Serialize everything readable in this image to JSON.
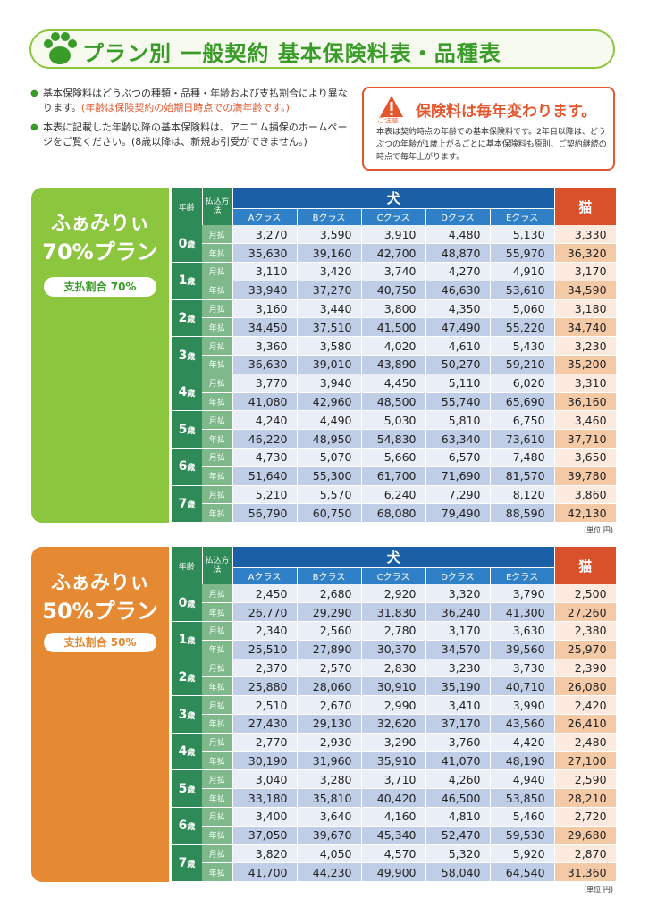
{
  "title": "プラン別 一般契約 基本保険料表・品種表",
  "notes": {
    "note1": "基本保険料はどうぶつの種類・品種・年齢および支払割合により異なります。",
    "note1_red": "(年齢は保険契約の始期日時点での満年齢です。)",
    "note2": "本表に記載した年齢以降の基本保険料は、アニコム損保のホームページをご覧ください。(8歳以降は、新規お引受ができません。)"
  },
  "caution": {
    "label": "ご注意",
    "heading": "保険料は毎年変わります。",
    "body": "本表は契約時点の年齢での基本保険料です。2年目以降は、どうぶつの年齢が1歳上がるごとに基本保険料も原則、ご契約継続の時点で毎年上がります。"
  },
  "table_headers": {
    "age": "年齢",
    "pay_method": "払込方法",
    "dog": "犬",
    "cat": "猫",
    "classes": [
      "Aクラス",
      "Bクラス",
      "Cクラス",
      "Dクラス",
      "Eクラス"
    ],
    "monthly": "月払",
    "annual": "年払",
    "age_suffix": "歳"
  },
  "colors": {
    "green": "#8cc63f",
    "orange": "#e58a33",
    "dog_header": "#1b5fa6",
    "cat_header": "#d8512b"
  },
  "plans": [
    {
      "name_line1": "ふぁみりぃ",
      "name_line2": "70%プラン",
      "badge": "支払割合 70%",
      "unit": "(単位:円)",
      "rows": [
        {
          "age": "0",
          "monthly": [
            "3,270",
            "3,590",
            "3,910",
            "4,480",
            "5,130",
            "3,330"
          ],
          "annual": [
            "35,630",
            "39,160",
            "42,700",
            "48,870",
            "55,970",
            "36,320"
          ]
        },
        {
          "age": "1",
          "monthly": [
            "3,110",
            "3,420",
            "3,740",
            "4,270",
            "4,910",
            "3,170"
          ],
          "annual": [
            "33,940",
            "37,270",
            "40,750",
            "46,630",
            "53,610",
            "34,590"
          ]
        },
        {
          "age": "2",
          "monthly": [
            "3,160",
            "3,440",
            "3,800",
            "4,350",
            "5,060",
            "3,180"
          ],
          "annual": [
            "34,450",
            "37,510",
            "41,500",
            "47,490",
            "55,220",
            "34,740"
          ]
        },
        {
          "age": "3",
          "monthly": [
            "3,360",
            "3,580",
            "4,020",
            "4,610",
            "5,430",
            "3,230"
          ],
          "annual": [
            "36,630",
            "39,010",
            "43,890",
            "50,270",
            "59,210",
            "35,200"
          ]
        },
        {
          "age": "4",
          "monthly": [
            "3,770",
            "3,940",
            "4,450",
            "5,110",
            "6,020",
            "3,310"
          ],
          "annual": [
            "41,080",
            "42,960",
            "48,500",
            "55,740",
            "65,690",
            "36,160"
          ]
        },
        {
          "age": "5",
          "monthly": [
            "4,240",
            "4,490",
            "5,030",
            "5,810",
            "6,750",
            "3,460"
          ],
          "annual": [
            "46,220",
            "48,950",
            "54,830",
            "63,340",
            "73,610",
            "37,710"
          ]
        },
        {
          "age": "6",
          "monthly": [
            "4,730",
            "5,070",
            "5,660",
            "6,570",
            "7,480",
            "3,650"
          ],
          "annual": [
            "51,640",
            "55,300",
            "61,700",
            "71,690",
            "81,570",
            "39,780"
          ]
        },
        {
          "age": "7",
          "monthly": [
            "5,210",
            "5,570",
            "6,240",
            "7,290",
            "8,120",
            "3,860"
          ],
          "annual": [
            "56,790",
            "60,750",
            "68,080",
            "79,490",
            "88,590",
            "42,130"
          ]
        }
      ]
    },
    {
      "name_line1": "ふぁみりぃ",
      "name_line2": "50%プラン",
      "badge": "支払割合 50%",
      "unit": "(単位:円)",
      "rows": [
        {
          "age": "0",
          "monthly": [
            "2,450",
            "2,680",
            "2,920",
            "3,320",
            "3,790",
            "2,500"
          ],
          "annual": [
            "26,770",
            "29,290",
            "31,830",
            "36,240",
            "41,300",
            "27,260"
          ]
        },
        {
          "age": "1",
          "monthly": [
            "2,340",
            "2,560",
            "2,780",
            "3,170",
            "3,630",
            "2,380"
          ],
          "annual": [
            "25,510",
            "27,890",
            "30,370",
            "34,570",
            "39,560",
            "25,970"
          ]
        },
        {
          "age": "2",
          "monthly": [
            "2,370",
            "2,570",
            "2,830",
            "3,230",
            "3,730",
            "2,390"
          ],
          "annual": [
            "25,880",
            "28,060",
            "30,910",
            "35,190",
            "40,710",
            "26,080"
          ]
        },
        {
          "age": "3",
          "monthly": [
            "2,510",
            "2,670",
            "2,990",
            "3,410",
            "3,990",
            "2,420"
          ],
          "annual": [
            "27,430",
            "29,130",
            "32,620",
            "37,170",
            "43,560",
            "26,410"
          ]
        },
        {
          "age": "4",
          "monthly": [
            "2,770",
            "2,930",
            "3,290",
            "3,760",
            "4,420",
            "2,480"
          ],
          "annual": [
            "30,190",
            "31,960",
            "35,910",
            "41,070",
            "48,190",
            "27,100"
          ]
        },
        {
          "age": "5",
          "monthly": [
            "3,040",
            "3,280",
            "3,710",
            "4,260",
            "4,940",
            "2,590"
          ],
          "annual": [
            "33,180",
            "35,810",
            "40,420",
            "46,500",
            "53,850",
            "28,210"
          ]
        },
        {
          "age": "6",
          "monthly": [
            "3,400",
            "3,640",
            "4,160",
            "4,810",
            "5,460",
            "2,720"
          ],
          "annual": [
            "37,050",
            "39,670",
            "45,340",
            "52,470",
            "59,530",
            "29,680"
          ]
        },
        {
          "age": "7",
          "monthly": [
            "3,820",
            "4,050",
            "4,570",
            "5,320",
            "5,920",
            "2,870"
          ],
          "annual": [
            "41,700",
            "44,230",
            "49,900",
            "58,040",
            "64,540",
            "31,360"
          ]
        }
      ]
    }
  ]
}
